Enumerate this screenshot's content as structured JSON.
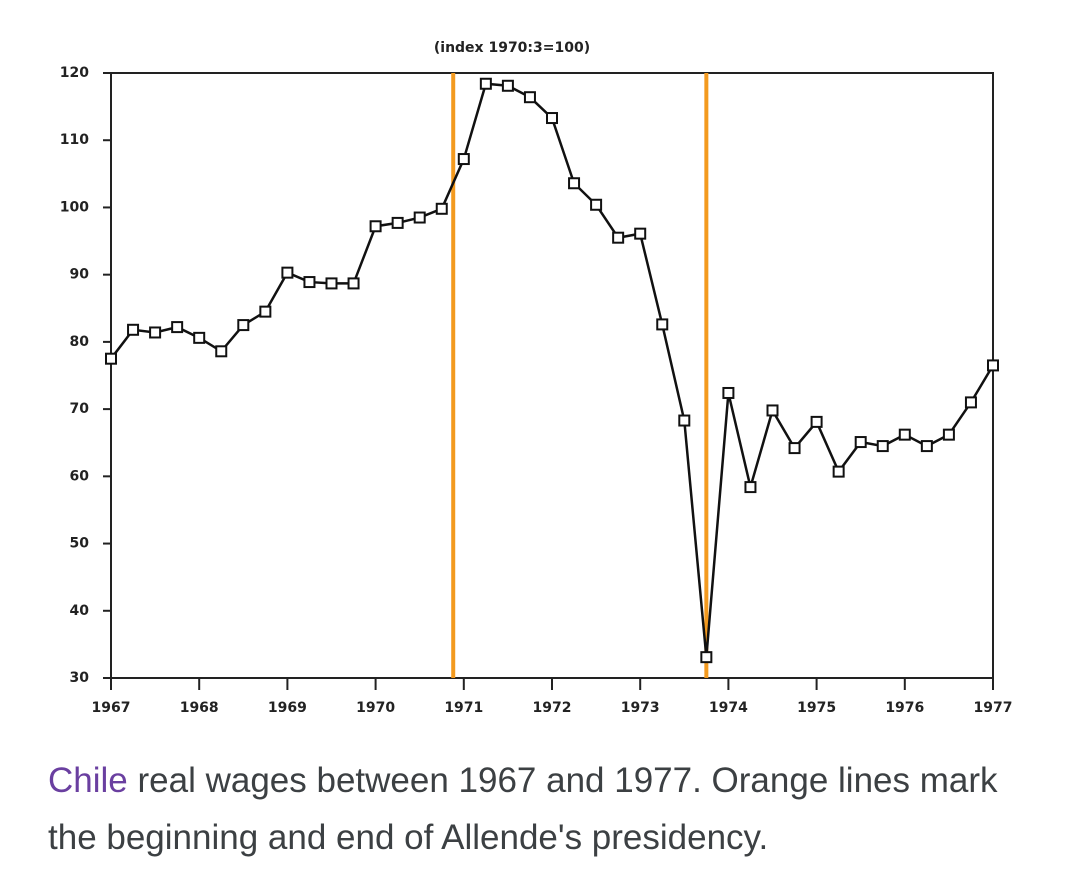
{
  "chart_data": {
    "type": "line",
    "title": "(index 1970:3=100)",
    "x": [
      1967,
      1967.25,
      1967.5,
      1967.75,
      1968,
      1968.25,
      1968.5,
      1968.75,
      1969,
      1969.25,
      1969.5,
      1969.75,
      1970,
      1970.25,
      1970.5,
      1970.75,
      1971,
      1971.25,
      1971.5,
      1971.75,
      1972,
      1972.25,
      1972.5,
      1972.75,
      1973,
      1973.25,
      1973.5,
      1973.75,
      1974,
      1974.25,
      1974.5,
      1974.75,
      1975,
      1975.25,
      1975.5,
      1975.75,
      1976,
      1976.25,
      1976.5,
      1976.75,
      1977
    ],
    "values": [
      77.5,
      81.8,
      81.4,
      82.2,
      80.6,
      78.6,
      82.5,
      84.5,
      90.3,
      88.9,
      88.7,
      88.7,
      97.2,
      97.7,
      98.5,
      99.8,
      107.2,
      118.4,
      118.1,
      116.4,
      113.3,
      103.6,
      100.4,
      95.5,
      96.1,
      82.6,
      68.3,
      33.1,
      72.4,
      58.4,
      69.8,
      64.2,
      68.1,
      60.7,
      65.1,
      64.5,
      66.2,
      64.5,
      66.2,
      71.0,
      76.5
    ],
    "color": "#111111",
    "marker": "square",
    "vlines": [
      {
        "x": 1970.88,
        "color": "#f39a1f"
      },
      {
        "x": 1973.75,
        "color": "#f39a1f"
      }
    ],
    "xlim": [
      1967,
      1977
    ],
    "xticks": [
      1967,
      1968,
      1969,
      1970,
      1971,
      1972,
      1973,
      1974,
      1975,
      1976,
      1977
    ],
    "ylim": [
      30,
      120
    ],
    "yticks": [
      30,
      40,
      50,
      60,
      70,
      80,
      90,
      100,
      110,
      120
    ],
    "grid": false
  },
  "caption": {
    "link": "Chile",
    "text": "real wages between 1967 and 1977. Orange lines mark the beginning and end of Allende's presidency."
  }
}
